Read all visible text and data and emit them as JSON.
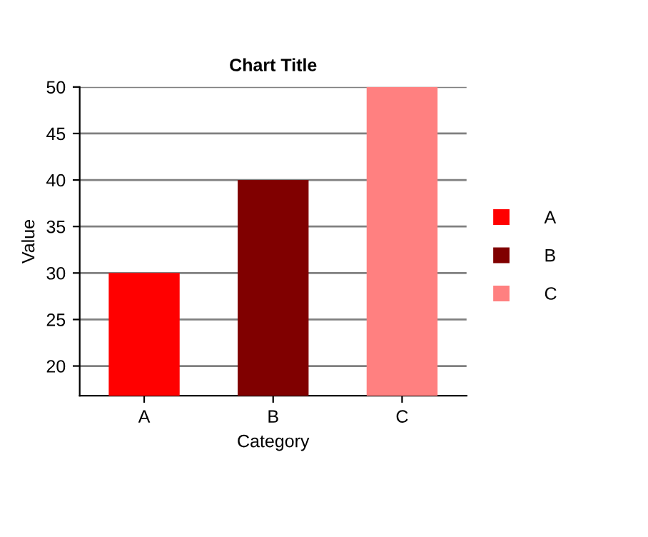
{
  "chart_data": {
    "type": "bar",
    "title": "Chart Title",
    "xlabel": "Category",
    "ylabel": "Value",
    "categories": [
      "A",
      "B",
      "C"
    ],
    "series": [
      {
        "name": "A",
        "color": "#ff0000",
        "values": [
          30,
          null,
          null
        ]
      },
      {
        "name": "B",
        "color": "#800000",
        "values": [
          null,
          40,
          null
        ]
      },
      {
        "name": "C",
        "color": "#ff8080",
        "values": [
          null,
          null,
          50
        ]
      }
    ],
    "ylim": [
      16.8,
      50
    ],
    "yticks": [
      20,
      25,
      30,
      35,
      40,
      45,
      50
    ],
    "grid": "y",
    "legend": "right"
  }
}
